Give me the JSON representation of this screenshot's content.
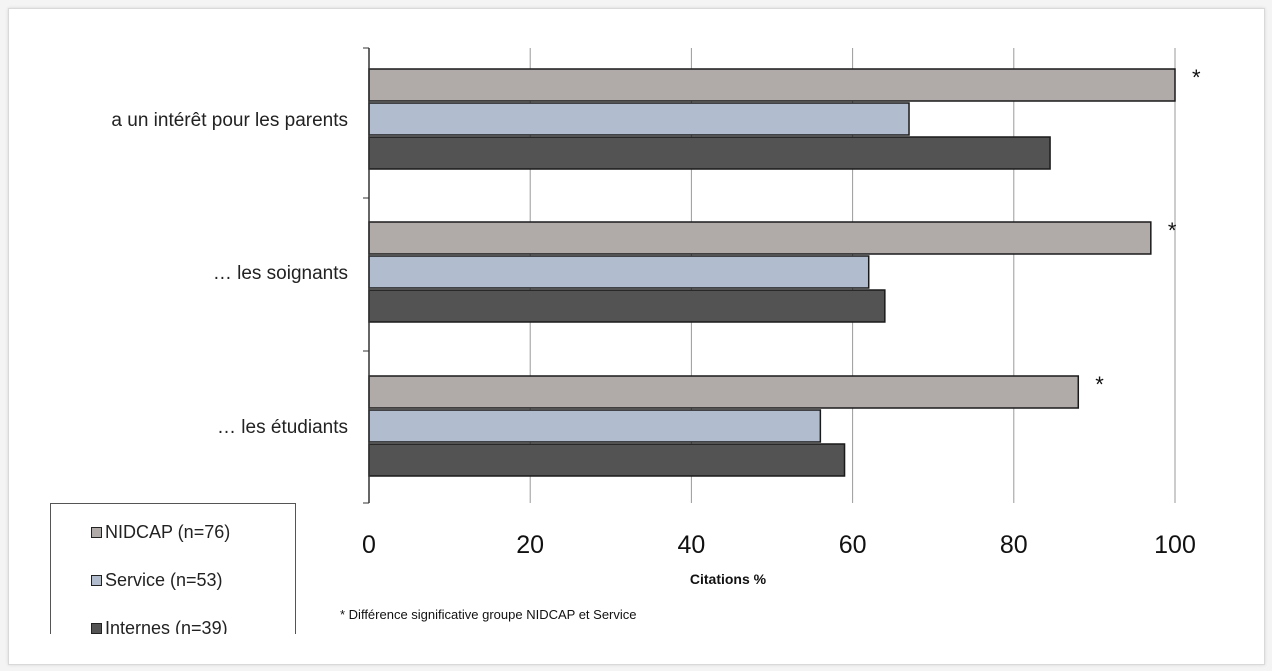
{
  "chart_data": {
    "type": "bar",
    "orientation": "horizontal",
    "categories": [
      "a un intérêt pour les parents",
      "… les soignants",
      "… les étudiants"
    ],
    "series": [
      {
        "name": "NIDCAP (n=76)",
        "values": [
          100,
          97,
          88
        ],
        "color": "#b0aaa8"
      },
      {
        "name": "Service (n=53)",
        "values": [
          67,
          62,
          56
        ],
        "color": "#b1bdcf"
      },
      {
        "name": "Internes (n=39)",
        "values": [
          84.5,
          64,
          59
        ],
        "color": "#535353"
      }
    ],
    "xlabel": "Citations %",
    "xlim": [
      0,
      100
    ],
    "xticks": [
      0,
      20,
      40,
      60,
      80,
      100
    ],
    "xtick_labels": [
      "0",
      "20",
      "40",
      "60",
      "80",
      "100"
    ],
    "grid": "vertical",
    "legend": "bottom-left",
    "annotations": [
      "*",
      "*",
      "*"
    ],
    "footnote": "* Différence significative groupe NIDCAP et Service"
  }
}
